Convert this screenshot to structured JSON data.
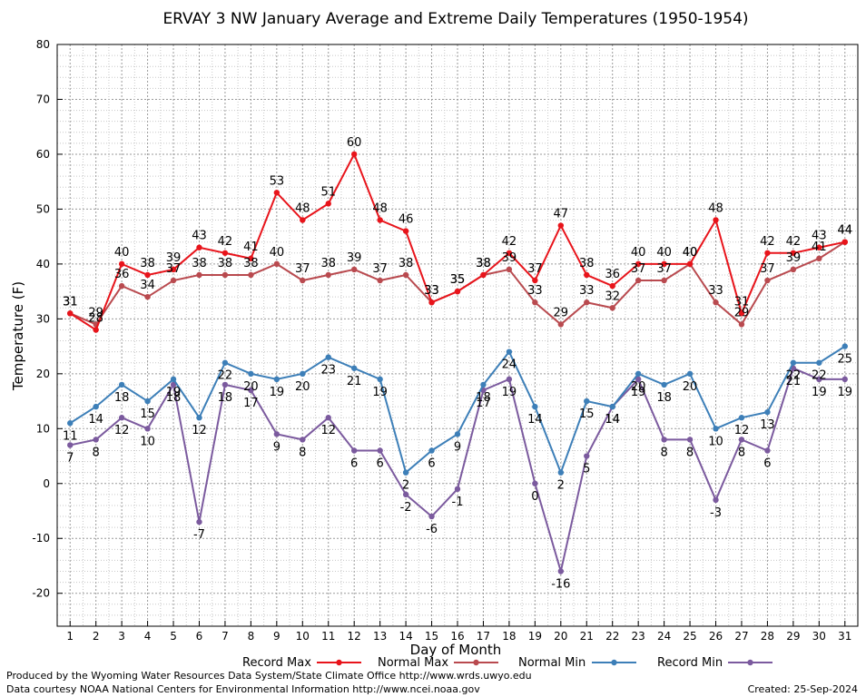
{
  "chart_data": {
    "type": "line",
    "title": "ERVAY 3 NW January Average and Extreme Daily Temperatures (1950-1954)",
    "xlabel": "Day of Month",
    "ylabel": "Temperature (F)",
    "ylim": [
      -26,
      80
    ],
    "yticks": [
      -20,
      -10,
      0,
      10,
      20,
      30,
      40,
      50,
      60,
      70,
      80
    ],
    "x": [
      1,
      2,
      3,
      4,
      5,
      6,
      7,
      8,
      9,
      10,
      11,
      12,
      13,
      14,
      15,
      16,
      17,
      18,
      19,
      20,
      21,
      22,
      23,
      24,
      25,
      26,
      27,
      28,
      29,
      30,
      31
    ],
    "grid": true,
    "legend_position": "bottom",
    "series": [
      {
        "name": "Record Max",
        "color": "#e8141b",
        "values": [
          31,
          28,
          40,
          38,
          39,
          43,
          42,
          41,
          53,
          48,
          51,
          60,
          48,
          46,
          33,
          35,
          38,
          42,
          37,
          47,
          38,
          36,
          40,
          40,
          40,
          48,
          31,
          42,
          42,
          43,
          44
        ]
      },
      {
        "name": "Normal Max",
        "color": "#b94a4f",
        "values": [
          31,
          29,
          36,
          34,
          37,
          38,
          38,
          38,
          40,
          37,
          38,
          39,
          37,
          38,
          33,
          35,
          38,
          39,
          33,
          29,
          33,
          32,
          37,
          37,
          40,
          33,
          29,
          37,
          39,
          41,
          44
        ]
      },
      {
        "name": "Normal Min",
        "color": "#3d7fb8",
        "values": [
          11,
          14,
          18,
          15,
          19,
          12,
          22,
          20,
          19,
          20,
          23,
          21,
          19,
          2,
          6,
          9,
          18,
          24,
          14,
          2,
          15,
          14,
          20,
          18,
          20,
          10,
          12,
          13,
          22,
          22,
          25
        ]
      },
      {
        "name": "Record Min",
        "color": "#7b5a9e",
        "values": [
          7,
          8,
          12,
          10,
          18,
          -7,
          18,
          17,
          9,
          8,
          12,
          6,
          6,
          -2,
          -6,
          -1,
          17,
          19,
          0,
          -16,
          5,
          14,
          19,
          8,
          8,
          -3,
          8,
          6,
          21,
          19,
          19
        ]
      }
    ]
  },
  "footer": {
    "produced_by": "Produced by the Wyoming Water Resources Data System/State Climate Office http://www.wrds.uwyo.edu",
    "data_courtesy": "Data courtesy NOAA National Centers for Environmental Information http://www.ncei.noaa.gov",
    "created": "Created:  25-Sep-2024"
  }
}
